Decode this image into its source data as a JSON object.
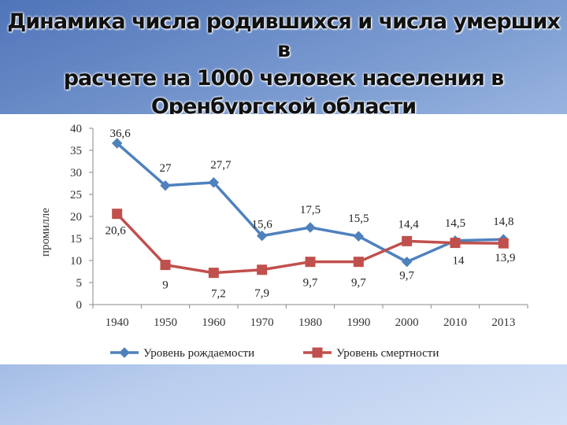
{
  "title": {
    "line1": "Динамика числа родившихся и числа умерших в",
    "line2": "расчете на 1000 человек населения в",
    "line3": "Оренбургской области"
  },
  "chart_data": {
    "type": "line",
    "categories": [
      "1940",
      "1950",
      "1960",
      "1970",
      "1980",
      "1990",
      "2000",
      "2010",
      "2013"
    ],
    "series": [
      {
        "name": "Уровень рождаемости",
        "color": "#4f81bd",
        "marker": "diamond",
        "values": [
          36.6,
          27,
          27.7,
          15.6,
          17.5,
          15.5,
          9.7,
          14.5,
          14.8
        ],
        "labels": [
          "36,6",
          "27",
          "27,7",
          "15,6",
          "17,5",
          "15,5",
          "9,7",
          "14,5",
          "14,8"
        ]
      },
      {
        "name": "Уровень смертности",
        "color": "#c0504d",
        "marker": "square",
        "values": [
          20.6,
          9,
          7.2,
          7.9,
          9.7,
          9.7,
          14.4,
          14,
          13.9
        ],
        "labels": [
          "20,6",
          "9",
          "7,2",
          "7,9",
          "9,7",
          "9,7",
          "14,4",
          "14",
          "13,9"
        ]
      }
    ],
    "ylabel": "промилле",
    "ylim": [
      0,
      40
    ],
    "yticks": [
      "0",
      "5",
      "10",
      "15",
      "20",
      "25",
      "30",
      "35",
      "40"
    ],
    "grid": false,
    "legend": "bottom"
  }
}
